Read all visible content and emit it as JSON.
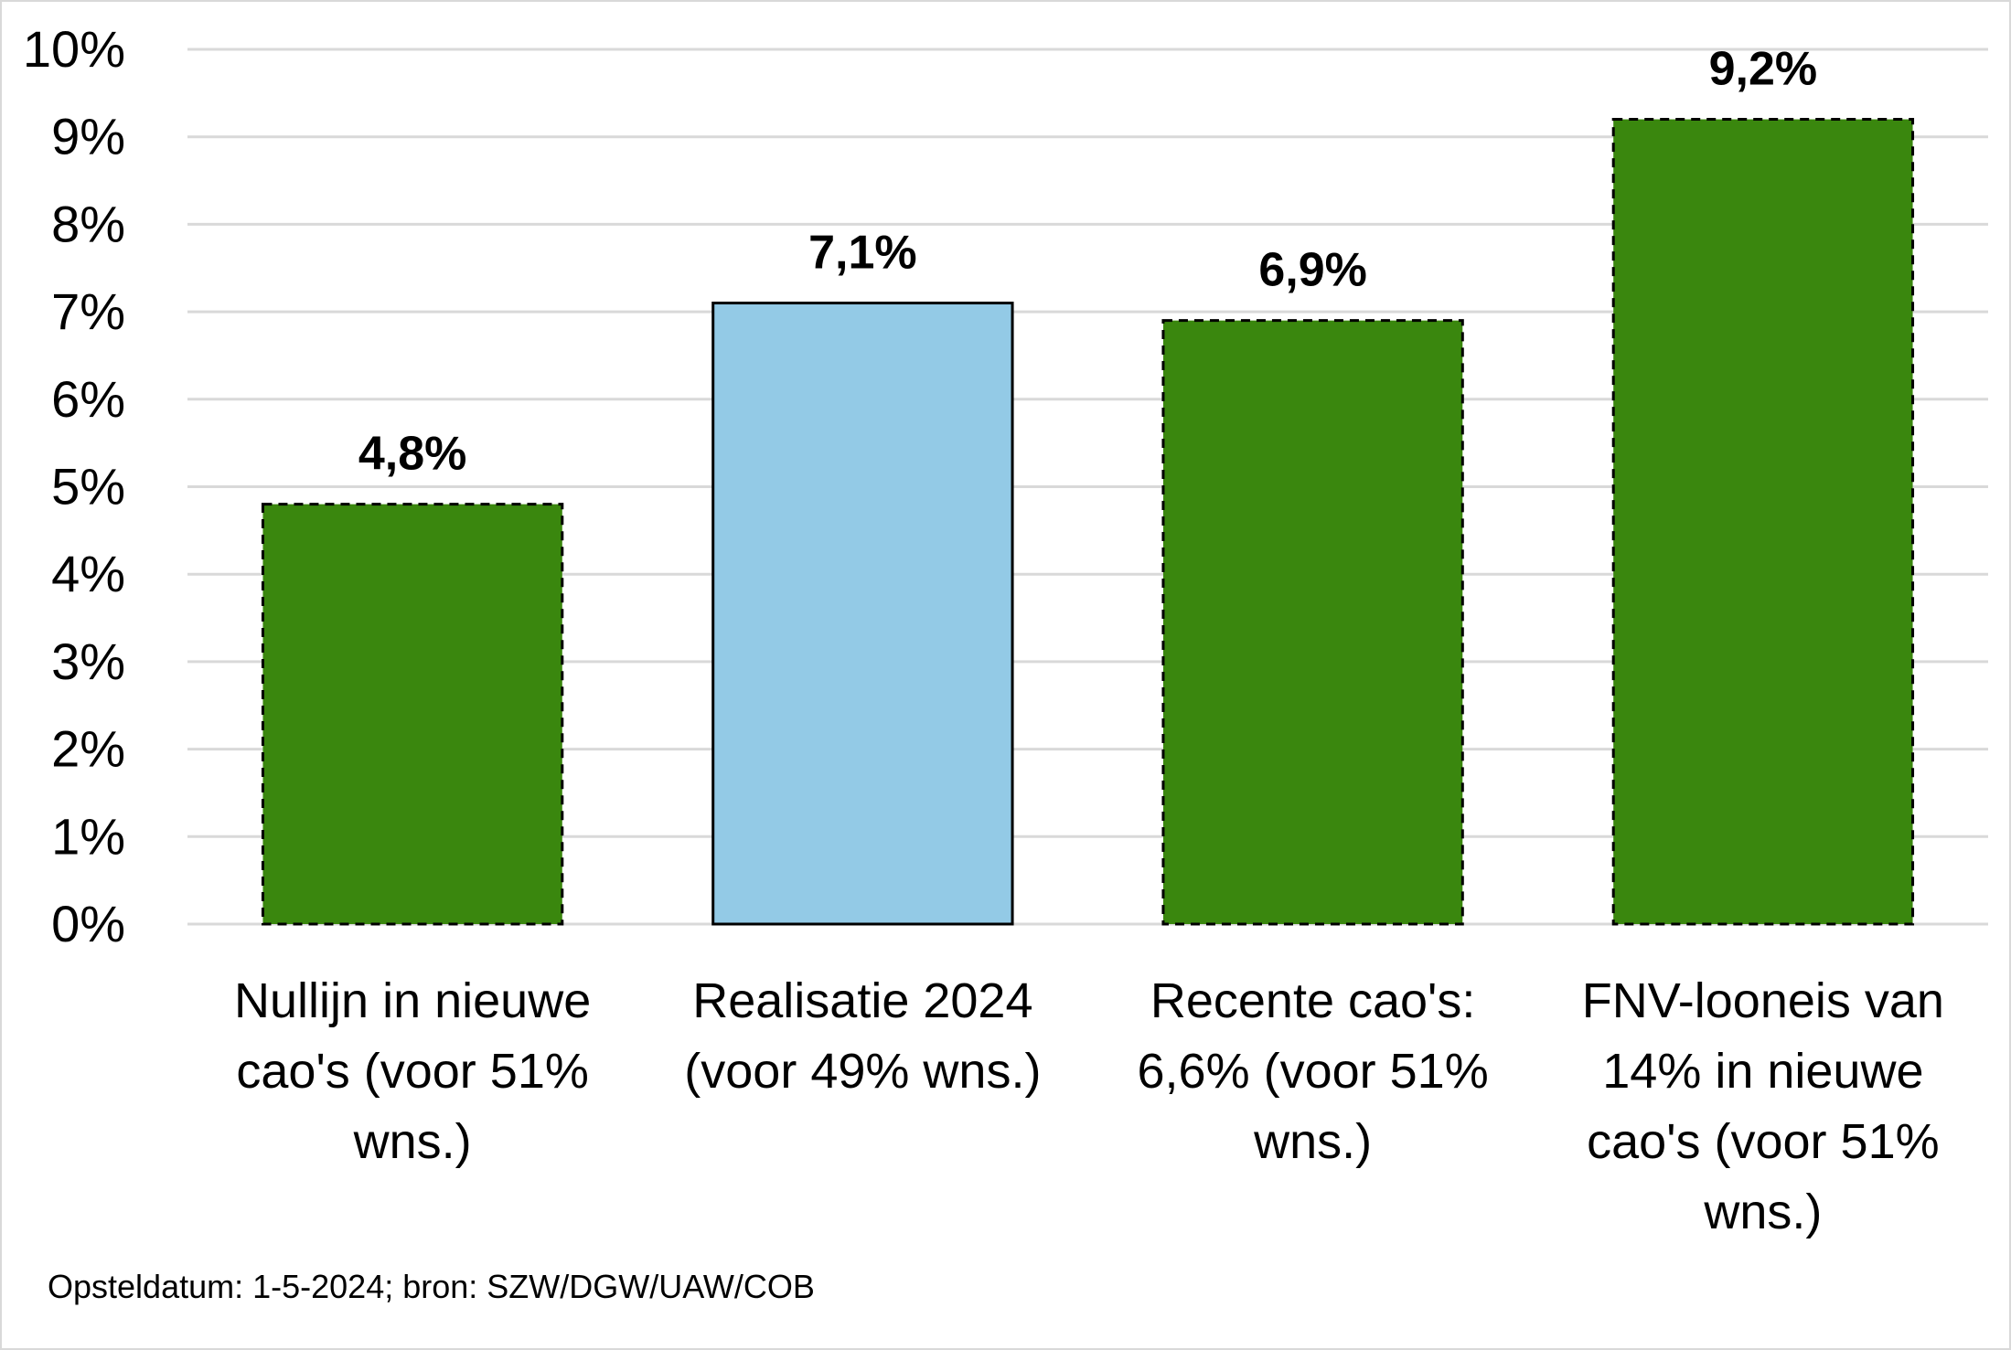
{
  "chart_data": {
    "type": "bar",
    "categories": [
      [
        "Nullijn in nieuwe",
        "cao's (voor 51%",
        "wns.)"
      ],
      [
        "Realisatie 2024",
        "(voor 49% wns.)"
      ],
      [
        "Recente cao's:",
        "6,6% (voor 51%",
        "wns.)"
      ],
      [
        "FNV-looneis van",
        "14% in nieuwe",
        "cao's (voor 51%",
        "wns.)"
      ]
    ],
    "values": [
      4.8,
      7.1,
      6.9,
      9.2
    ],
    "data_labels": [
      "4,8%",
      "7,1%",
      "6,9%",
      "9,2%"
    ],
    "bar_colors": [
      "#3a870e",
      "#93cae6",
      "#3a870e",
      "#3a870e"
    ],
    "bar_border_styles": [
      "dashed",
      "solid",
      "dashed",
      "dashed"
    ],
    "ylim": [
      0,
      10
    ],
    "yticks": [
      0,
      1,
      2,
      3,
      4,
      5,
      6,
      7,
      8,
      9,
      10
    ],
    "ytick_labels": [
      "0%",
      "1%",
      "2%",
      "3%",
      "4%",
      "5%",
      "6%",
      "7%",
      "8%",
      "9%",
      "10%"
    ],
    "grid": true,
    "legend": "none",
    "source_note": "Opsteldatum: 1-5-2024; bron: SZW/DGW/UAW/COB"
  }
}
